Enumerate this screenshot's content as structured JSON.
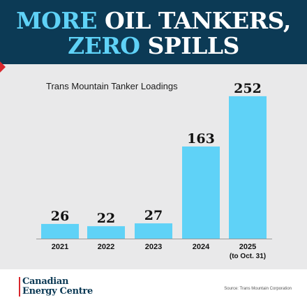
{
  "headline": {
    "line1_accent": "MORE",
    "line1_rest": "OIL TANKERS,",
    "line2_accent": "ZERO",
    "line2_rest": "SPILLS"
  },
  "colors": {
    "header_bg": "#0c3a55",
    "accent": "#5fd2f7",
    "bar": "#5fd2f7",
    "brand_red": "#d8272d",
    "page_bg": "#e9e9ea"
  },
  "chart_data": {
    "type": "bar",
    "title": "Trans Mountain Tanker Loadings",
    "categories": [
      "2021",
      "2022",
      "2023",
      "2024",
      "2025"
    ],
    "category_sublabels": [
      "",
      "",
      "",
      "",
      "(to Oct. 31)"
    ],
    "values": [
      26,
      22,
      27,
      163,
      252
    ],
    "ylim": [
      0,
      260
    ],
    "grid": false,
    "legend": "none"
  },
  "footer": {
    "logo_line1": "Canadian",
    "logo_line2": "Energy Centre",
    "source": "Source: Trans Mountain Corporation"
  }
}
